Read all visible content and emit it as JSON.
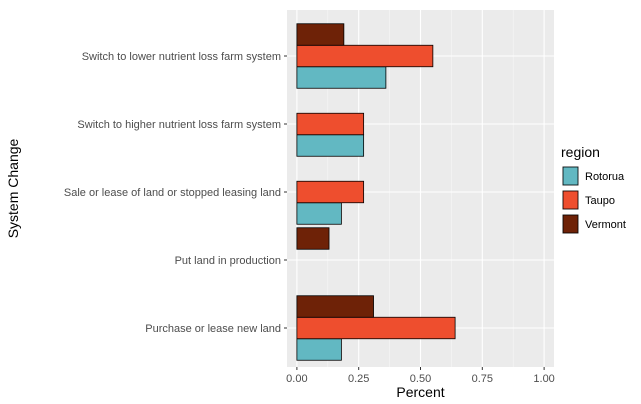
{
  "chart_data": {
    "type": "bar",
    "orientation": "horizontal",
    "title": "",
    "xlabel": "Percent",
    "ylabel": "System Change",
    "xlim": [
      0,
      1
    ],
    "x_ticks": [
      "0.00",
      "0.25",
      "0.50",
      "0.75",
      "1.00"
    ],
    "x_tick_values": [
      0,
      0.25,
      0.5,
      0.75,
      1.0
    ],
    "categories": [
      "Purchase or lease new land",
      "Put land in production",
      "Sale or lease of land or stopped leasing land",
      "Switch to higher nutrient loss farm system",
      "Switch to lower nutrient loss  farm system"
    ],
    "series": [
      {
        "name": "Rotorua",
        "color": "#62b8c2",
        "values": [
          0.18,
          0.0,
          0.18,
          0.27,
          0.36
        ]
      },
      {
        "name": "Taupo",
        "color": "#ee4e2e",
        "values": [
          0.64,
          0.0,
          0.27,
          0.27,
          0.55
        ]
      },
      {
        "name": "Vermont",
        "color": "#6e2207",
        "values": [
          0.31,
          0.13,
          0.0,
          0.0,
          0.19
        ]
      }
    ],
    "legend": {
      "title": "region",
      "position": "right"
    },
    "grid": true
  }
}
